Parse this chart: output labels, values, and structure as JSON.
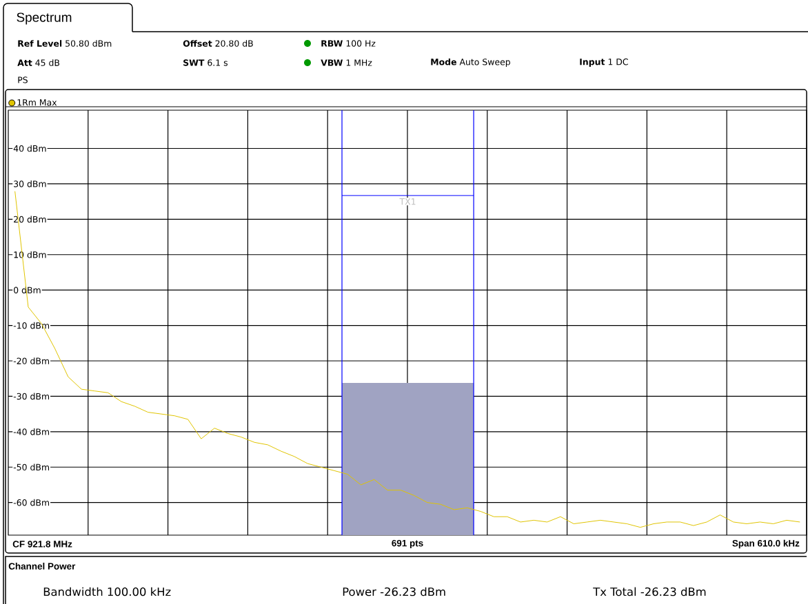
{
  "chart_data": {
    "type": "line",
    "title": "Spectrum",
    "annotations": [
      "**Ref Level** 50.80 dBm",
      "**Offset** 20.80 dB",
      "**RBW** 100 Hz",
      "**Att** 45 dB",
      "**SWT** 6.1 s",
      "**VBW** 1 MHz",
      "**Mode** Auto Sweep",
      "**Input** 1 DC",
      "PS",
      "CF 921.8 MHz",
      "691 pts",
      "Span 610.0 kHz",
      "Channel Power",
      "Bandwidth 100.00 kHz",
      "Power -26.23 dBm",
      "Tx Total -26.23 dBm"
    ],
    "ref_lines": [
      {
        "axis": "y",
        "value": 26.7,
        "label": "TX1",
        "color": "#0000ff"
      }
    ],
    "bands": [
      {
        "axis": "y",
        "from": -69.2,
        "to": -26.23,
        "color": "#a0a3c2"
      }
    ],
    "categories": [
      null,
      null,
      null,
      null,
      null,
      null,
      null,
      null,
      null,
      null,
      null,
      null,
      null,
      null,
      null,
      null,
      null,
      null,
      null,
      null,
      null,
      null,
      null,
      null,
      null,
      null,
      null,
      null,
      null,
      null,
      null,
      null,
      null,
      null,
      null,
      null,
      null,
      null,
      null,
      null,
      null,
      null,
      null,
      null,
      null,
      null,
      null,
      null,
      null,
      null,
      null,
      null,
      null,
      null,
      null,
      null,
      null,
      null,
      null,
      null
    ],
    "ylim": [
      -69.2,
      50.8
    ],
    "yticks": [
      {
        "value": -60,
        "label": "-60 dBm"
      },
      {
        "value": -50,
        "label": "-50 dBm"
      },
      {
        "value": -40,
        "label": "-40 dBm"
      },
      {
        "value": -30,
        "label": "-30 dBm"
      },
      {
        "value": -20,
        "label": "-20 dBm"
      },
      {
        "value": -10,
        "label": "-10 dBm"
      },
      {
        "value": 0,
        "label": "0 dBm"
      },
      {
        "value": 10,
        "label": "10 dBm"
      },
      {
        "value": 20,
        "label": "20 dBm"
      },
      {
        "value": 30,
        "label": "30 dBm"
      },
      {
        "value": 40,
        "label": "40 dBm"
      }
    ],
    "tick_labels": "y",
    "grid": true,
    "legend": "top left",
    "series": [
      {
        "name": "1Rm Max",
        "color": "#e0c400",
        "values": [
          27.9,
          -4.8,
          -9.5,
          -16.5,
          -24.5,
          -28,
          -28.5,
          -29,
          -31.5,
          -32.8,
          -34.5,
          -35,
          -35.5,
          -36.5,
          -42,
          -39,
          -40.5,
          -41.5,
          -43,
          -43.7,
          -45.5,
          -47,
          -49,
          -50,
          -51,
          -52,
          -55,
          -53.5,
          -56.5,
          -56.5,
          -58,
          -60,
          -60.5,
          -62,
          -61.5,
          -62.5,
          -64,
          -64,
          -65.5,
          -65,
          -65.5,
          -64,
          -66,
          -65.5,
          -65,
          -65.5,
          -66,
          -67,
          -66,
          -65.5,
          -65.5,
          -66.5,
          -65.5,
          -63.5,
          -65.5,
          -66,
          -65.5,
          -66,
          -65,
          -65.5
        ]
      }
    ]
  }
}
